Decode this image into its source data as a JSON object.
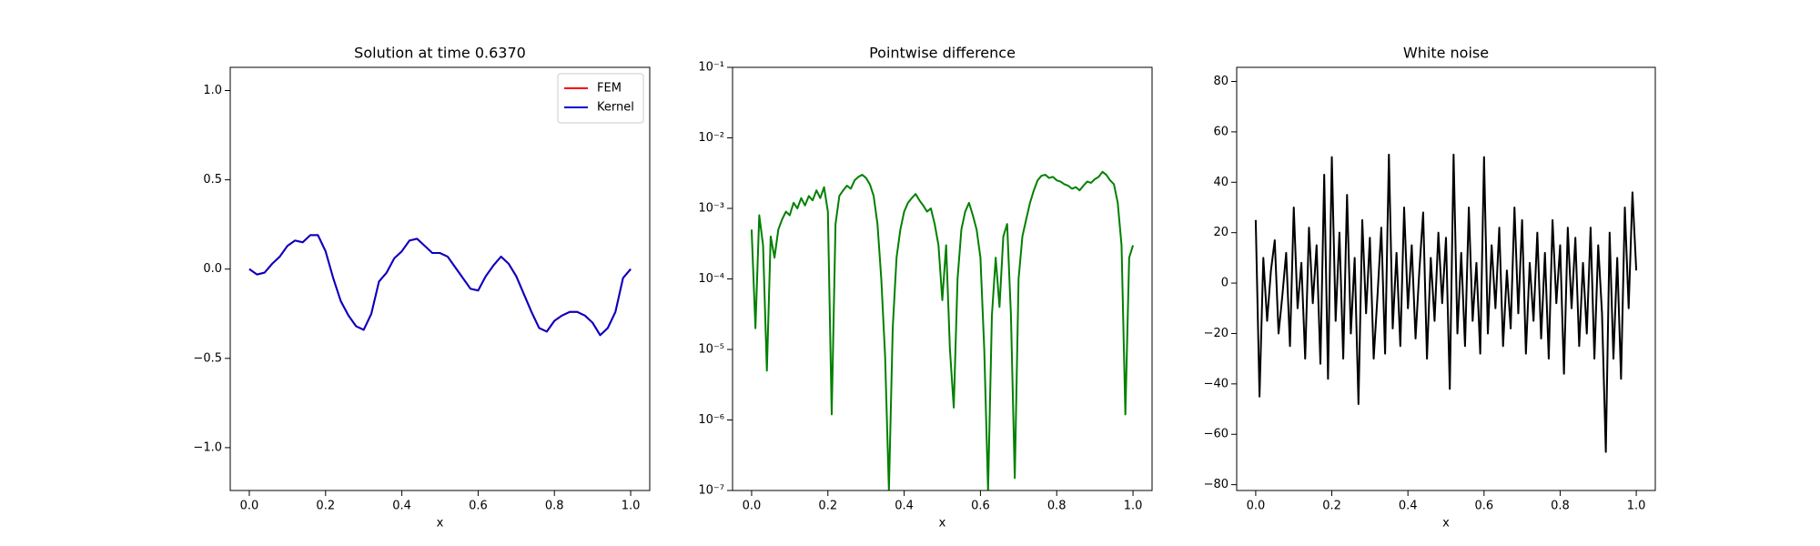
{
  "chart_data": [
    {
      "type": "line",
      "title": "Solution at time 0.6370",
      "xlabel": "x",
      "legend": "upper right",
      "xlim": [
        -0.05,
        1.05
      ],
      "ylim": [
        -1.24,
        1.13
      ],
      "xticks": [
        {
          "value": 0,
          "label": "0.0"
        },
        {
          "value": 0.2,
          "label": "0.2"
        },
        {
          "value": 0.4,
          "label": "0.4"
        },
        {
          "value": 0.6,
          "label": "0.6"
        },
        {
          "value": 0.8,
          "label": "0.8"
        },
        {
          "value": 1,
          "label": "1.0"
        }
      ],
      "yticks": [
        {
          "value": -1,
          "label": "−1.0"
        },
        {
          "value": -0.5,
          "label": "−0.5"
        },
        {
          "value": 0,
          "label": "0.0"
        },
        {
          "value": 0.5,
          "label": "0.5"
        },
        {
          "value": 1,
          "label": "1.0"
        }
      ],
      "x": [
        0,
        0.02,
        0.04,
        0.06,
        0.08,
        0.1,
        0.12,
        0.14,
        0.16,
        0.18,
        0.2,
        0.22,
        0.24,
        0.26,
        0.28,
        0.3,
        0.32,
        0.34,
        0.36,
        0.38,
        0.4,
        0.42,
        0.44,
        0.46,
        0.48,
        0.5,
        0.52,
        0.54,
        0.56,
        0.58,
        0.6,
        0.62,
        0.64,
        0.66,
        0.68,
        0.7,
        0.72,
        0.74,
        0.76,
        0.78,
        0.8,
        0.82,
        0.84,
        0.86,
        0.88,
        0.9,
        0.92,
        0.94,
        0.96,
        0.98,
        1
      ],
      "series": [
        {
          "name": "FEM",
          "color": "#ff0000",
          "values": [
            0,
            -0.03,
            -0.02,
            0.03,
            0.07,
            0.13,
            0.16,
            0.15,
            0.19,
            0.19,
            0.1,
            -0.05,
            -0.18,
            -0.26,
            -0.32,
            -0.34,
            -0.25,
            -0.07,
            -0.02,
            0.06,
            0.1,
            0.16,
            0.17,
            0.13,
            0.09,
            0.09,
            0.07,
            0.01,
            -0.05,
            -0.11,
            -0.12,
            -0.04,
            0.02,
            0.07,
            0.03,
            -0.04,
            -0.14,
            -0.24,
            -0.33,
            -0.35,
            -0.29,
            -0.26,
            -0.24,
            -0.24,
            -0.26,
            -0.3,
            -0.37,
            -0.33,
            -0.24,
            -0.05,
            0
          ]
        },
        {
          "name": "Kernel",
          "color": "#0000cc",
          "values": [
            0,
            -0.03,
            -0.02,
            0.03,
            0.07,
            0.13,
            0.16,
            0.15,
            0.19,
            0.19,
            0.1,
            -0.05,
            -0.18,
            -0.26,
            -0.32,
            -0.34,
            -0.25,
            -0.07,
            -0.02,
            0.06,
            0.1,
            0.16,
            0.17,
            0.13,
            0.09,
            0.09,
            0.07,
            0.01,
            -0.05,
            -0.11,
            -0.12,
            -0.04,
            0.02,
            0.07,
            0.03,
            -0.04,
            -0.14,
            -0.24,
            -0.33,
            -0.35,
            -0.29,
            -0.26,
            -0.24,
            -0.24,
            -0.26,
            -0.3,
            -0.37,
            -0.33,
            -0.24,
            -0.05,
            0
          ]
        }
      ]
    },
    {
      "type": "line",
      "title": "Pointwise difference",
      "xlabel": "x",
      "log_y": true,
      "color": "#008000",
      "xlim": [
        -0.05,
        1.05
      ],
      "ylim": [
        1e-07,
        0.1
      ],
      "xticks": [
        {
          "value": 0,
          "label": "0.0"
        },
        {
          "value": 0.2,
          "label": "0.2"
        },
        {
          "value": 0.4,
          "label": "0.4"
        },
        {
          "value": 0.6,
          "label": "0.6"
        },
        {
          "value": 0.8,
          "label": "0.8"
        },
        {
          "value": 1,
          "label": "1.0"
        }
      ],
      "yticks": [
        {
          "value": 1e-07,
          "label": "10⁻⁷"
        },
        {
          "value": 1e-06,
          "label": "10⁻⁶"
        },
        {
          "value": 1e-05,
          "label": "10⁻⁵"
        },
        {
          "value": 0.0001,
          "label": "10⁻⁴"
        },
        {
          "value": 0.001,
          "label": "10⁻³"
        },
        {
          "value": 0.01,
          "label": "10⁻²"
        },
        {
          "value": 0.1,
          "label": "10⁻¹"
        }
      ],
      "x": [
        0,
        0.01,
        0.02,
        0.03,
        0.04,
        0.05,
        0.06,
        0.07,
        0.08,
        0.09,
        0.1,
        0.11,
        0.12,
        0.13,
        0.14,
        0.15,
        0.16,
        0.17,
        0.18,
        0.19,
        0.2,
        0.21,
        0.22,
        0.23,
        0.24,
        0.25,
        0.26,
        0.27,
        0.28,
        0.29,
        0.3,
        0.31,
        0.32,
        0.33,
        0.34,
        0.35,
        0.36,
        0.37,
        0.38,
        0.39,
        0.4,
        0.41,
        0.42,
        0.43,
        0.44,
        0.45,
        0.46,
        0.47,
        0.48,
        0.49,
        0.5,
        0.51,
        0.52,
        0.53,
        0.54,
        0.55,
        0.56,
        0.57,
        0.58,
        0.59,
        0.6,
        0.61,
        0.62,
        0.63,
        0.64,
        0.65,
        0.66,
        0.67,
        0.68,
        0.69,
        0.7,
        0.71,
        0.72,
        0.73,
        0.74,
        0.75,
        0.76,
        0.77,
        0.78,
        0.79,
        0.8,
        0.81,
        0.82,
        0.83,
        0.84,
        0.85,
        0.86,
        0.87,
        0.88,
        0.89,
        0.9,
        0.91,
        0.92,
        0.93,
        0.94,
        0.95,
        0.96,
        0.97,
        0.98,
        0.99,
        1
      ],
      "values": [
        0.0005,
        2e-05,
        0.0008,
        0.0003,
        5e-06,
        0.0004,
        0.0002,
        0.0005,
        0.0007,
        0.0009,
        0.0008,
        0.0012,
        0.001,
        0.0014,
        0.0011,
        0.0015,
        0.0013,
        0.0018,
        0.0014,
        0.002,
        0.0009,
        1.2e-06,
        0.0006,
        0.0015,
        0.0018,
        0.0021,
        0.0019,
        0.0025,
        0.0028,
        0.003,
        0.0027,
        0.0022,
        0.0015,
        0.0006,
        0.0001,
        8e-06,
        1e-07,
        2e-05,
        0.0002,
        0.0005,
        0.0009,
        0.0012,
        0.0014,
        0.0016,
        0.0013,
        0.0011,
        0.0009,
        0.001,
        0.0006,
        0.0003,
        5e-05,
        0.0003,
        1e-05,
        1.5e-06,
        0.0001,
        0.0005,
        0.0009,
        0.0012,
        0.0008,
        0.0005,
        0.0002,
        1e-05,
        1e-07,
        3e-05,
        0.0002,
        4e-05,
        0.0004,
        0.0006,
        3e-05,
        1.5e-07,
        0.0001,
        0.0004,
        0.0007,
        0.0012,
        0.0018,
        0.0025,
        0.0029,
        0.003,
        0.0027,
        0.0028,
        0.0025,
        0.0024,
        0.0022,
        0.0021,
        0.0019,
        0.002,
        0.0018,
        0.0021,
        0.0024,
        0.0023,
        0.0026,
        0.0028,
        0.0033,
        0.003,
        0.0025,
        0.0022,
        0.0012,
        0.0003,
        1.2e-06,
        0.0002,
        0.0003
      ]
    },
    {
      "type": "line",
      "title": "White noise",
      "xlabel": "x",
      "color": "#000000",
      "xlim": [
        -0.05,
        1.05
      ],
      "ylim": [
        -82.3,
        85.6
      ],
      "xticks": [
        {
          "value": 0,
          "label": "0.0"
        },
        {
          "value": 0.2,
          "label": "0.2"
        },
        {
          "value": 0.4,
          "label": "0.4"
        },
        {
          "value": 0.6,
          "label": "0.6"
        },
        {
          "value": 0.8,
          "label": "0.8"
        },
        {
          "value": 1,
          "label": "1.0"
        }
      ],
      "yticks": [
        {
          "value": -80,
          "label": "−80"
        },
        {
          "value": -60,
          "label": "−60"
        },
        {
          "value": -40,
          "label": "−40"
        },
        {
          "value": -20,
          "label": "−20"
        },
        0,
        20,
        40,
        60,
        80
      ],
      "x": [
        0,
        0.01,
        0.02,
        0.03,
        0.04,
        0.05,
        0.06,
        0.07,
        0.08,
        0.09,
        0.1,
        0.11,
        0.12,
        0.13,
        0.14,
        0.15,
        0.16,
        0.17,
        0.18,
        0.19,
        0.2,
        0.21,
        0.22,
        0.23,
        0.24,
        0.25,
        0.26,
        0.27,
        0.28,
        0.29,
        0.3,
        0.31,
        0.32,
        0.33,
        0.34,
        0.35,
        0.36,
        0.37,
        0.38,
        0.39,
        0.4,
        0.41,
        0.42,
        0.43,
        0.44,
        0.45,
        0.46,
        0.47,
        0.48,
        0.49,
        0.5,
        0.51,
        0.52,
        0.53,
        0.54,
        0.55,
        0.56,
        0.57,
        0.58,
        0.59,
        0.6,
        0.61,
        0.62,
        0.63,
        0.64,
        0.65,
        0.66,
        0.67,
        0.68,
        0.69,
        0.7,
        0.71,
        0.72,
        0.73,
        0.74,
        0.75,
        0.76,
        0.77,
        0.78,
        0.79,
        0.8,
        0.81,
        0.82,
        0.83,
        0.84,
        0.85,
        0.86,
        0.87,
        0.88,
        0.89,
        0.9,
        0.91,
        0.92,
        0.93,
        0.94,
        0.95,
        0.96,
        0.97,
        0.98,
        0.99,
        1
      ],
      "values": [
        25,
        -45,
        10,
        -15,
        5,
        17,
        -20,
        -5,
        12,
        -25,
        30,
        -10,
        8,
        -30,
        22,
        -8,
        15,
        -32,
        43,
        -38,
        50,
        -15,
        20,
        -30,
        35,
        -20,
        10,
        -48,
        25,
        -12,
        18,
        -30,
        -5,
        22,
        -28,
        51,
        -18,
        12,
        -25,
        30,
        -10,
        15,
        -22,
        5,
        28,
        -30,
        10,
        -15,
        20,
        -8,
        18,
        -42,
        51,
        -20,
        12,
        -25,
        30,
        -15,
        8,
        -28,
        50,
        -20,
        15,
        -10,
        22,
        -25,
        5,
        -18,
        30,
        -12,
        25,
        -28,
        8,
        -15,
        20,
        -22,
        12,
        -30,
        25,
        -8,
        15,
        -36,
        22,
        -10,
        18,
        -25,
        8,
        -20,
        22,
        -30,
        15,
        -12,
        -67,
        20,
        -30,
        10,
        -38,
        30,
        -10,
        36,
        5
      ]
    }
  ]
}
